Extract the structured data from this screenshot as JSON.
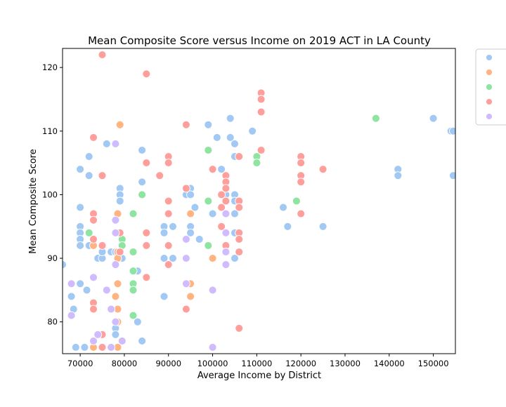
{
  "chart_data": {
    "type": "scatter",
    "title": "Mean Composite Score versus Income on 2019 ACT in LA County",
    "xlabel": "Average Income by District",
    "ylabel": "Mean Composite Score",
    "xlim": [
      66000,
      155000
    ],
    "ylim": [
      75,
      123
    ],
    "xticks": [
      70000,
      80000,
      90000,
      100000,
      110000,
      120000,
      130000,
      140000,
      150000
    ],
    "xtick_labels": [
      "70000",
      "80000",
      "90000",
      "100000",
      "110000",
      "120000",
      "130000",
      "140000",
      "150000"
    ],
    "yticks": [
      80,
      90,
      100,
      110,
      120
    ],
    "ytick_labels": [
      "80",
      "90",
      "100",
      "110",
      "120"
    ],
    "grid": false,
    "legend_placement": "outside-top-right",
    "series": [
      {
        "color": "#a1c9f4",
        "points": [
          [
            66000,
            89
          ],
          [
            68000,
            84
          ],
          [
            68500,
            82
          ],
          [
            69000,
            76
          ],
          [
            70000,
            104
          ],
          [
            70000,
            98
          ],
          [
            70000,
            95
          ],
          [
            70000,
            94
          ],
          [
            70000,
            93
          ],
          [
            70000,
            92
          ],
          [
            70000,
            86
          ],
          [
            71000,
            76
          ],
          [
            71500,
            85
          ],
          [
            72000,
            106
          ],
          [
            72000,
            103
          ],
          [
            72000,
            92
          ],
          [
            74000,
            90
          ],
          [
            75000,
            90
          ],
          [
            75000,
            91
          ],
          [
            76000,
            108
          ],
          [
            77000,
            91
          ],
          [
            78000,
            91
          ],
          [
            78000,
            79
          ],
          [
            78000,
            78
          ],
          [
            79000,
            101
          ],
          [
            79000,
            100
          ],
          [
            79000,
            99
          ],
          [
            79000,
            90
          ],
          [
            79500,
            90
          ],
          [
            83000,
            88
          ],
          [
            83000,
            80
          ],
          [
            84000,
            107
          ],
          [
            84000,
            102
          ],
          [
            84000,
            77
          ],
          [
            89000,
            95
          ],
          [
            89000,
            94
          ],
          [
            89000,
            84
          ],
          [
            89000,
            90
          ],
          [
            91000,
            95
          ],
          [
            91000,
            90
          ],
          [
            94000,
            100
          ],
          [
            95000,
            101
          ],
          [
            95000,
            100
          ],
          [
            95000,
            95
          ],
          [
            95000,
            94
          ],
          [
            96000,
            98
          ],
          [
            97000,
            93
          ],
          [
            99000,
            111
          ],
          [
            100000,
            97
          ],
          [
            101000,
            109
          ],
          [
            102000,
            104
          ],
          [
            103000,
            100
          ],
          [
            104000,
            112
          ],
          [
            104000,
            109
          ],
          [
            105000,
            108
          ],
          [
            105000,
            106
          ],
          [
            105000,
            100
          ],
          [
            105000,
            99
          ],
          [
            105000,
            97
          ],
          [
            105000,
            94
          ],
          [
            105000,
            90
          ],
          [
            109000,
            110
          ],
          [
            116000,
            98
          ],
          [
            117000,
            95
          ],
          [
            125000,
            95
          ],
          [
            142000,
            104
          ],
          [
            142000,
            103
          ],
          [
            150000,
            112
          ],
          [
            154000,
            110
          ],
          [
            154500,
            110
          ],
          [
            154500,
            103
          ]
        ]
      },
      {
        "color": "#ffb482",
        "points": [
          [
            73000,
            92
          ],
          [
            73000,
            76
          ],
          [
            78000,
            84
          ],
          [
            78500,
            97
          ],
          [
            78500,
            94
          ],
          [
            78500,
            91
          ],
          [
            78500,
            90
          ],
          [
            78500,
            86
          ],
          [
            78500,
            82
          ],
          [
            78500,
            80
          ],
          [
            78500,
            76
          ],
          [
            79000,
            111
          ],
          [
            95000,
            97
          ],
          [
            95000,
            86
          ],
          [
            95000,
            84
          ],
          [
            100000,
            90
          ]
        ]
      },
      {
        "color": "#8de5a1",
        "points": [
          [
            72000,
            94
          ],
          [
            79500,
            93
          ],
          [
            79500,
            92
          ],
          [
            82000,
            97
          ],
          [
            82000,
            91
          ],
          [
            82000,
            88
          ],
          [
            82000,
            86
          ],
          [
            82000,
            85
          ],
          [
            82000,
            81
          ],
          [
            84000,
            100
          ],
          [
            99000,
            107
          ],
          [
            99000,
            99
          ],
          [
            99000,
            92
          ],
          [
            110000,
            106
          ],
          [
            110000,
            105
          ],
          [
            119000,
            99
          ],
          [
            137000,
            112
          ]
        ]
      },
      {
        "color": "#ff9f9b",
        "points": [
          [
            73000,
            109
          ],
          [
            73000,
            97
          ],
          [
            73000,
            96
          ],
          [
            73000,
            93
          ],
          [
            73000,
            83
          ],
          [
            73000,
            82
          ],
          [
            75000,
            122
          ],
          [
            75000,
            103
          ],
          [
            75000,
            92
          ],
          [
            75000,
            78
          ],
          [
            75000,
            76
          ],
          [
            77000,
            82
          ],
          [
            79000,
            94
          ],
          [
            79000,
            91
          ],
          [
            85000,
            119
          ],
          [
            85000,
            105
          ],
          [
            85000,
            94
          ],
          [
            85000,
            92
          ],
          [
            85000,
            87
          ],
          [
            88000,
            103
          ],
          [
            90000,
            106
          ],
          [
            90000,
            105
          ],
          [
            90000,
            99
          ],
          [
            90000,
            97
          ],
          [
            90000,
            92
          ],
          [
            90000,
            89
          ],
          [
            94000,
            111
          ],
          [
            94000,
            101
          ],
          [
            94000,
            82
          ],
          [
            100000,
            104
          ],
          [
            102000,
            98
          ],
          [
            102000,
            95
          ],
          [
            102000,
            100
          ],
          [
            103000,
            103
          ],
          [
            103000,
            102
          ],
          [
            103000,
            101
          ],
          [
            103000,
            99
          ],
          [
            103000,
            92
          ],
          [
            106000,
            106
          ],
          [
            106000,
            99
          ],
          [
            106000,
            98
          ],
          [
            106000,
            94
          ],
          [
            106000,
            93
          ],
          [
            106000,
            91
          ],
          [
            106000,
            79
          ],
          [
            111000,
            116
          ],
          [
            111000,
            115
          ],
          [
            111000,
            113
          ],
          [
            111000,
            107
          ],
          [
            120000,
            106
          ],
          [
            120000,
            105
          ],
          [
            120000,
            103
          ],
          [
            120000,
            102
          ],
          [
            120000,
            97
          ],
          [
            125000,
            104
          ]
        ]
      },
      {
        "color": "#d0bbff",
        "points": [
          [
            68000,
            86
          ],
          [
            68000,
            81
          ],
          [
            73000,
            87
          ],
          [
            73000,
            77
          ],
          [
            74000,
            78
          ],
          [
            76000,
            85
          ],
          [
            77000,
            82
          ],
          [
            77000,
            76
          ],
          [
            78000,
            108
          ],
          [
            78000,
            96
          ],
          [
            78000,
            94
          ],
          [
            78000,
            89
          ],
          [
            78000,
            80
          ],
          [
            79500,
            77
          ],
          [
            94000,
            93
          ],
          [
            94000,
            90
          ],
          [
            94000,
            86
          ],
          [
            100000,
            85
          ],
          [
            100000,
            76
          ],
          [
            103000,
            97
          ],
          [
            103000,
            94
          ],
          [
            103000,
            91
          ],
          [
            103000,
            89
          ]
        ]
      }
    ],
    "legend_entries": [
      {
        "color": "#a1c9f4"
      },
      {
        "color": "#ffb482"
      },
      {
        "color": "#8de5a1"
      },
      {
        "color": "#ff9f9b"
      },
      {
        "color": "#d0bbff"
      }
    ]
  }
}
